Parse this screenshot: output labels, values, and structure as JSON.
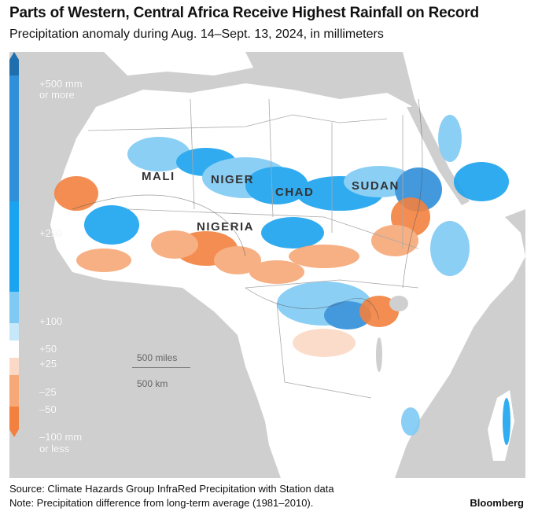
{
  "title": "Parts of Western, Central Africa Receive Highest Rainfall on Record",
  "subtitle": "Precipitation anomaly during Aug. 14–Sept. 13, 2024, in millimeters",
  "legend": {
    "labels": [
      {
        "text": "+500 mm",
        "value": 500
      },
      {
        "text": "or more",
        "value": 500
      },
      {
        "text": "+250",
        "value": 250
      },
      {
        "text": "+100",
        "value": 100
      },
      {
        "text": "+50",
        "value": 50
      },
      {
        "text": "+25",
        "value": 25
      },
      {
        "text": "–25",
        "value": -25
      },
      {
        "text": "–50",
        "value": -50
      },
      {
        "text": "–100 mm",
        "value": -100
      },
      {
        "text": "or less",
        "value": -100
      }
    ],
    "colors": {
      "wet_extreme": "#1f6fae",
      "wet_high": "#2f8fd9",
      "wet_mid": "#1aa3ee",
      "wet_low": "#7fcaf5",
      "wet_lightest": "#c6e8fa",
      "neutral": "#ffffff",
      "dry_light": "#fbd9c6",
      "dry_mid": "#f7a877",
      "dry_high": "#f2813f"
    }
  },
  "countries": [
    "MALI",
    "NIGER",
    "CHAD",
    "SUDAN",
    "NIGERIA"
  ],
  "scale_bar": {
    "miles": "500 miles",
    "km": "500 km"
  },
  "source": "Source: Climate Hazards Group InfraRed Precipitation with Station data",
  "note": "Note: Precipitation difference from long-term average (1981–2010).",
  "brand": "Bloomberg"
}
